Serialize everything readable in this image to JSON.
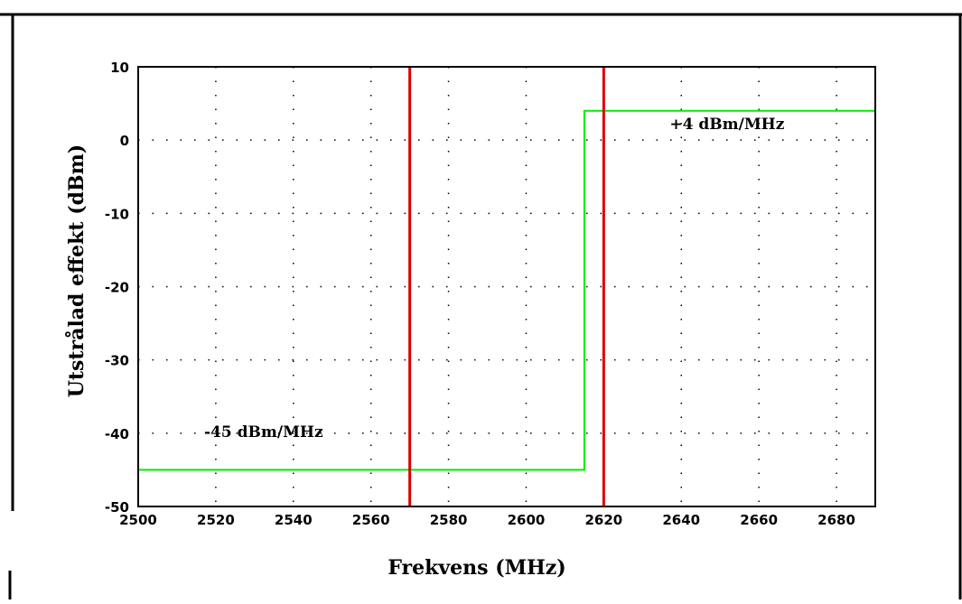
{
  "chart_data": {
    "type": "line",
    "xlabel": "Frekvens (MHz)",
    "ylabel": "Utstrålad effekt (dBm)",
    "xlim": [
      2500,
      2690
    ],
    "ylim": [
      -50,
      10
    ],
    "xticks": [
      2500,
      2520,
      2540,
      2560,
      2580,
      2600,
      2620,
      2640,
      2660,
      2680
    ],
    "xtick_labels": [
      "2500",
      "2520",
      "2540",
      "2560",
      "2580",
      "2600",
      "2620",
      "2640",
      "2660",
      "2680"
    ],
    "yticks": [
      10,
      0,
      -10,
      -20,
      -30,
      -40,
      -50
    ],
    "ytick_labels": [
      "10",
      "0",
      "-10",
      "-20",
      "-30",
      "-40",
      "-50"
    ],
    "grid": true,
    "series": [
      {
        "color": "#00ee00",
        "x": [
          2500,
          2615,
          2615,
          2690
        ],
        "y": [
          -45,
          -45,
          4,
          4
        ]
      }
    ],
    "vlines": [
      {
        "x": 2570,
        "color": "#dd0000"
      },
      {
        "x": 2620,
        "color": "#dd0000"
      }
    ],
    "annotations": [
      {
        "text": "+4 dBm/MHz",
        "x": 2637,
        "y": 1.5
      },
      {
        "text": "-45 dBm/MHz",
        "x": 2517,
        "y": -40.5
      }
    ]
  }
}
